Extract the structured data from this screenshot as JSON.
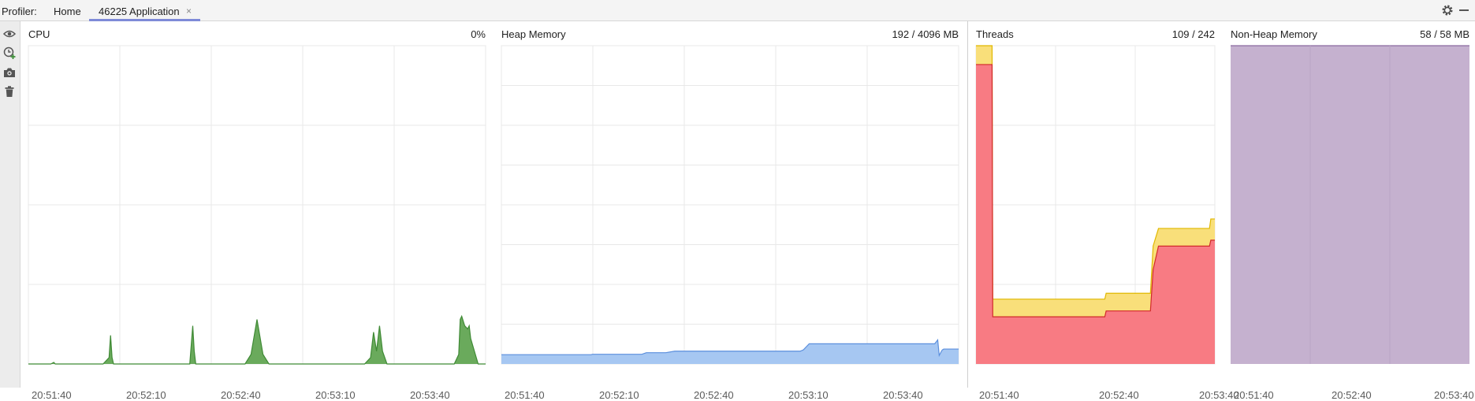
{
  "toolbar": {
    "profiler_label": "Profiler:",
    "tabs": [
      {
        "label": "Home"
      },
      {
        "label": "46225 Application",
        "active": true,
        "close": "×"
      }
    ],
    "gear_icon": "gear-icon",
    "minimize_icon": "minimize-icon"
  },
  "sidebar": {
    "items": [
      {
        "icon": "eye-icon"
      },
      {
        "icon": "clock-add-icon"
      },
      {
        "icon": "camera-icon"
      },
      {
        "icon": "trash-icon"
      }
    ]
  },
  "colors": {
    "cpu": "#6aaa5c",
    "cpu_line": "#3f8a35",
    "heap": "#a6c7f2",
    "heap_line": "#5b8fdd",
    "threads_live": "#f87b83",
    "threads_live_line": "#d12a2a",
    "threads_total": "#f9df7a",
    "threads_total_line": "#e0b800",
    "nonheap": "#c5b1cf",
    "nonheap_line": "#8b6aa0",
    "grid": "#e8e8e8"
  },
  "panels": {
    "cpu": {
      "title": "CPU",
      "value": "0%",
      "ticks": [
        "20:51:40",
        "20:52:10",
        "20:52:40",
        "20:53:10",
        "20:53:40"
      ]
    },
    "heap": {
      "title": "Heap Memory",
      "value": "192 / 4096 MB",
      "ticks": [
        "20:51:40",
        "20:52:10",
        "20:52:40",
        "20:53:10",
        "20:53:40"
      ]
    },
    "threads": {
      "title": "Threads",
      "value": "109 / 242",
      "ticks": [
        "20:51:40",
        "20:52:40",
        "20:53:40"
      ]
    },
    "nonheap": {
      "title": "Non-Heap Memory",
      "value": "58 / 58 MB",
      "ticks": [
        "20:51:40",
        "20:52:40",
        "20:53:40"
      ]
    }
  },
  "chart_data": [
    {
      "type": "area",
      "title": "CPU",
      "unit": "%",
      "ylim": [
        0,
        100
      ],
      "x": [
        0,
        15,
        17,
        18,
        50,
        54,
        55,
        56,
        57,
        104,
        108,
        110,
        111,
        112,
        113,
        120,
        145,
        149,
        153,
        157,
        161,
        165,
        225,
        229,
        231,
        233,
        235,
        237,
        240,
        285,
        288,
        289,
        290,
        292,
        294,
        295,
        296,
        301,
        306
      ],
      "y": [
        0,
        0,
        0.5,
        0,
        0,
        2,
        9,
        2,
        0,
        0,
        0,
        12,
        4,
        0,
        0,
        0,
        0,
        3,
        14,
        3,
        0,
        0,
        0,
        2,
        10,
        4,
        12,
        4,
        0,
        0,
        3,
        14,
        15,
        12,
        11,
        12,
        8,
        0,
        0
      ]
    },
    {
      "type": "area",
      "title": "Heap Memory",
      "unit": "MB",
      "ylim": [
        0,
        4096
      ],
      "x": [
        0,
        60,
        61,
        94,
        97,
        110,
        116,
        200,
        202,
        206,
        290,
        292,
        293,
        295,
        296,
        306
      ],
      "y": [
        120,
        120,
        125,
        125,
        145,
        145,
        165,
        165,
        180,
        260,
        260,
        310,
        110,
        180,
        192,
        192
      ]
    },
    {
      "type": "area",
      "title": "Threads",
      "ylim": [
        0,
        270
      ],
      "series": [
        {
          "name": "",
          "x": [
            0,
            12,
            12.5,
            96,
            97,
            104,
            106,
            130,
            132,
            136,
            174,
            175,
            178
          ],
          "y": [
            270,
            270,
            55,
            55,
            60,
            60,
            60,
            60,
            100,
            115,
            115,
            123,
            123
          ]
        },
        {
          "name": "",
          "x": [
            0,
            12,
            12.5,
            96,
            97,
            104,
            106,
            130,
            132,
            136,
            174,
            175,
            178
          ],
          "y": [
            254,
            254,
            40,
            40,
            45,
            45,
            45,
            45,
            80,
            100,
            100,
            105,
            105
          ]
        }
      ]
    },
    {
      "type": "area",
      "title": "Non-Heap Memory",
      "unit": "MB",
      "ylim": [
        0,
        58
      ],
      "x": [
        0,
        178
      ],
      "y": [
        58,
        58
      ]
    }
  ]
}
